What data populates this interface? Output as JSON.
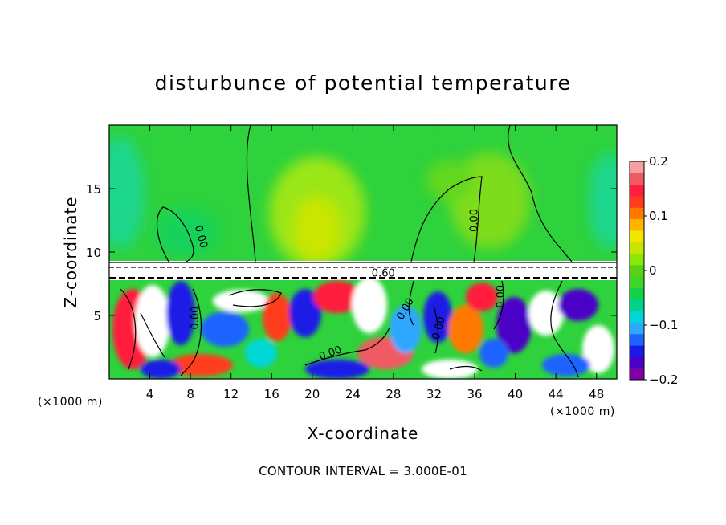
{
  "chart_data": {
    "type": "heatmap",
    "title": "disturbunce of potential temperature",
    "xlabel": "X-coordinate",
    "ylabel": "Z-coordinate",
    "x_unit": "(×1000 m)",
    "z_unit": "(×1000 m)",
    "xlim": [
      0,
      50
    ],
    "ylim": [
      0,
      20
    ],
    "x_ticks": [
      "4",
      "8",
      "12",
      "16",
      "20",
      "24",
      "28",
      "32",
      "36",
      "40",
      "44",
      "48"
    ],
    "y_ticks": [
      "5",
      "10",
      "15"
    ],
    "colorbar": {
      "range": [
        -0.2,
        0.2
      ],
      "tick_labels": [
        "0.2",
        "0.1",
        "0",
        "−0.1",
        "−0.2"
      ],
      "colors": [
        "#8000a8",
        "#4b00c8",
        "#1a1ae6",
        "#1f64ff",
        "#2ea8ff",
        "#00d6d6",
        "#00d28c",
        "#14d246",
        "#3cd628",
        "#5ad214",
        "#8ce60a",
        "#c8e600",
        "#f0e600",
        "#ffb400",
        "#ff7800",
        "#ff3c1e",
        "#ff1e3c",
        "#f05a64",
        "#f5a0a0"
      ]
    },
    "contour_interval": "CONTOUR INTERVAL = 3.000E-01",
    "contour_labels": [
      {
        "text": "0.00",
        "x": 9.0,
        "z": 11.2,
        "rotate": 75
      },
      {
        "text": "0.00",
        "x": 36.0,
        "z": 12.5,
        "rotate": -90
      },
      {
        "text": "0.60",
        "x": 27.0,
        "z": 8.3,
        "rotate": 0
      },
      {
        "text": "0.00",
        "x": 8.5,
        "z": 4.8,
        "rotate": -90
      },
      {
        "text": "0.00",
        "x": 21.8,
        "z": 2.0,
        "rotate": -20
      },
      {
        "text": "0.00",
        "x": 29.2,
        "z": 5.5,
        "rotate": -60
      },
      {
        "text": "0.00",
        "x": 32.5,
        "z": 4.0,
        "rotate": -75
      },
      {
        "text": "0.00",
        "x": 38.6,
        "z": 6.5,
        "rotate": -90
      }
    ]
  }
}
